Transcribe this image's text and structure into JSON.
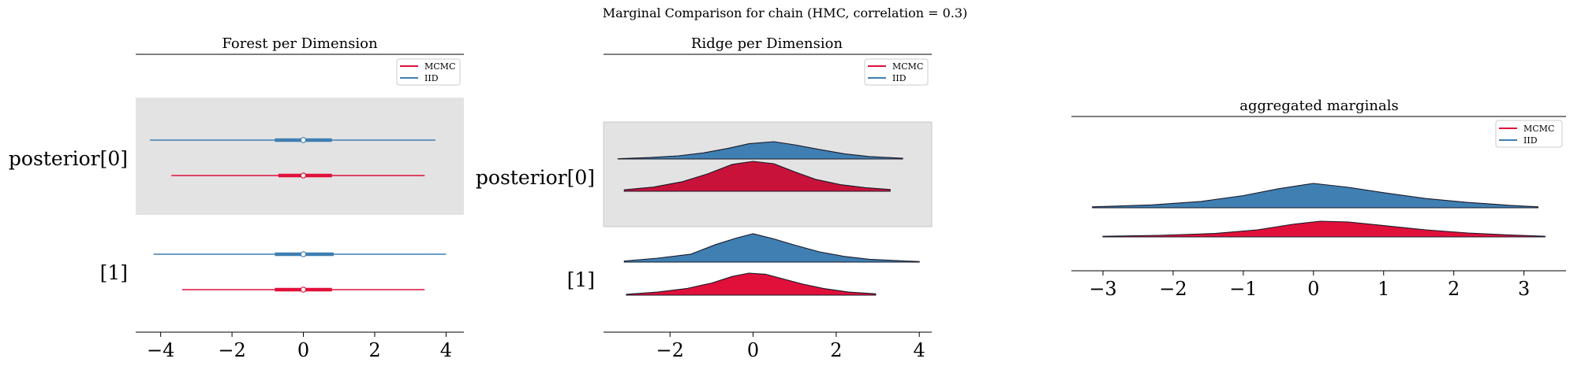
{
  "figure": {
    "suptitle": "Marginal Comparison for chain (HMC, correlation = 0.3)"
  },
  "colors": {
    "mcmc": "#e0103a",
    "iid": "#3f7fb2",
    "band": "#e3e3e3",
    "ridge_mcmc_dark": "#c8123a"
  },
  "chart_data": [
    {
      "type": "forest",
      "title": "Forest per Dimension",
      "legend": {
        "placement": "top-right",
        "entries": [
          "MCMC",
          "IID"
        ]
      },
      "xlim": [
        -4.7,
        4.5
      ],
      "xticks": [
        -4,
        -2,
        0,
        2,
        4
      ],
      "xtick_labels": [
        "−4",
        "−2",
        "0",
        "2",
        "4"
      ],
      "rows": [
        {
          "label": "posterior[0]",
          "highlight": true,
          "series": [
            {
              "name": "IID",
              "hdi_low": -4.3,
              "hdi_high": 3.7,
              "iqr_low": -0.8,
              "iqr_high": 0.8,
              "median": 0.0
            },
            {
              "name": "MCMC",
              "hdi_low": -3.7,
              "hdi_high": 3.4,
              "iqr_low": -0.7,
              "iqr_high": 0.8,
              "median": 0.0
            }
          ]
        },
        {
          "label": "[1]",
          "highlight": false,
          "series": [
            {
              "name": "IID",
              "hdi_low": -4.2,
              "hdi_high": 4.0,
              "iqr_low": -0.8,
              "iqr_high": 0.85,
              "median": 0.0
            },
            {
              "name": "MCMC",
              "hdi_low": -3.4,
              "hdi_high": 3.4,
              "iqr_low": -0.8,
              "iqr_high": 0.8,
              "median": 0.0
            }
          ]
        }
      ]
    },
    {
      "type": "ridge",
      "title": "Ridge per Dimension",
      "legend": {
        "placement": "top-right",
        "entries": [
          "MCMC",
          "IID"
        ]
      },
      "xlim": [
        -3.6,
        4.3
      ],
      "xticks": [
        -2,
        0,
        2,
        4
      ],
      "xtick_labels": [
        "−2",
        "0",
        "2",
        "4"
      ],
      "rows": [
        {
          "label": "posterior[0]",
          "highlight": true,
          "series": [
            {
              "name": "IID",
              "x": [
                -3.25,
                -2.5,
                -1.8,
                -1.2,
                -0.6,
                -0.1,
                0.5,
                1.0,
                1.6,
                2.2,
                2.8,
                3.6
              ],
              "density": [
                0.02,
                0.08,
                0.18,
                0.35,
                0.62,
                0.88,
                1.0,
                0.82,
                0.55,
                0.3,
                0.14,
                0.04
              ]
            },
            {
              "name": "MCMC",
              "x": [
                -3.1,
                -2.4,
                -1.7,
                -1.1,
                -0.5,
                0.0,
                0.5,
                1.0,
                1.5,
                2.1,
                2.7,
                3.3
              ],
              "density": [
                0.05,
                0.14,
                0.32,
                0.58,
                0.9,
                1.0,
                0.92,
                0.65,
                0.4,
                0.22,
                0.12,
                0.06
              ]
            }
          ]
        },
        {
          "label": "[1]",
          "highlight": false,
          "series": [
            {
              "name": "IID",
              "x": [
                -3.1,
                -2.3,
                -1.5,
                -0.9,
                -0.4,
                0.0,
                0.5,
                1.0,
                1.6,
                2.2,
                2.8,
                3.5,
                4.0
              ],
              "density": [
                0.04,
                0.14,
                0.28,
                0.62,
                0.85,
                1.0,
                0.82,
                0.6,
                0.36,
                0.2,
                0.1,
                0.05,
                0.02
              ]
            },
            {
              "name": "MCMC",
              "x": [
                -3.05,
                -2.3,
                -1.6,
                -1.0,
                -0.5,
                -0.1,
                0.3,
                0.7,
                1.2,
                1.7,
                2.3,
                2.95
              ],
              "density": [
                0.04,
                0.14,
                0.3,
                0.55,
                0.85,
                1.0,
                0.95,
                0.75,
                0.5,
                0.3,
                0.14,
                0.06
              ]
            }
          ]
        }
      ]
    },
    {
      "type": "ridge",
      "title": "aggregated marginals",
      "legend": {
        "placement": "top-right",
        "entries": [
          "MCMC",
          "IID"
        ]
      },
      "xlim": [
        -3.45,
        3.6
      ],
      "xticks": [
        -3,
        -2,
        -1,
        0,
        1,
        2,
        3
      ],
      "xtick_labels": [
        "−3",
        "−2",
        "−1",
        "0",
        "1",
        "2",
        "3"
      ],
      "rows": [
        {
          "label": "",
          "highlight": false,
          "series": [
            {
              "name": "IID",
              "x": [
                -3.15,
                -2.3,
                -1.6,
                -1.0,
                -0.5,
                0.0,
                0.5,
                1.0,
                1.6,
                2.2,
                2.8,
                3.2
              ],
              "density": [
                0.04,
                0.12,
                0.26,
                0.5,
                0.78,
                1.0,
                0.84,
                0.62,
                0.38,
                0.22,
                0.1,
                0.04
              ]
            },
            {
              "name": "MCMC",
              "x": [
                -3.0,
                -2.2,
                -1.4,
                -0.8,
                -0.3,
                0.1,
                0.5,
                1.0,
                1.6,
                2.2,
                2.8,
                3.3
              ],
              "density": [
                0.04,
                0.1,
                0.22,
                0.45,
                0.8,
                1.0,
                0.95,
                0.72,
                0.45,
                0.25,
                0.12,
                0.04
              ]
            }
          ]
        }
      ]
    }
  ]
}
